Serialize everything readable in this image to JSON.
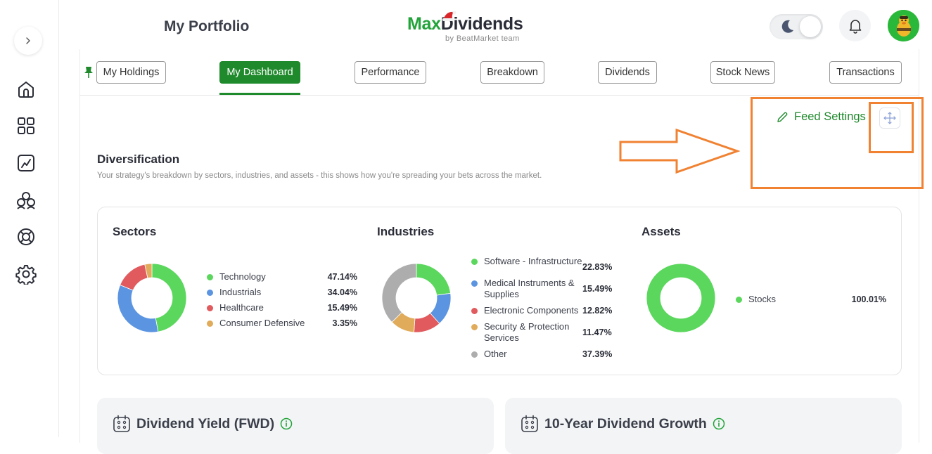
{
  "header": {
    "page_title": "My Portfolio",
    "logo_max": "Max",
    "logo_dividends": "Dividends",
    "logo_sub": "by BeatMarket team"
  },
  "rail": {
    "items": [
      "home-icon",
      "apps-grid-icon",
      "chart-icon",
      "community-icon",
      "lifebuoy-icon",
      "gear-icon"
    ]
  },
  "tabs": [
    {
      "label": "My Holdings"
    },
    {
      "label": "My Dashboard",
      "active": true
    },
    {
      "label": "Performance"
    },
    {
      "label": "Breakdown"
    },
    {
      "label": "Dividends"
    },
    {
      "label": "Stock News"
    },
    {
      "label": "Transactions"
    }
  ],
  "toolbar": {
    "feed_settings": "Feed Settings"
  },
  "diversification": {
    "title": "Diversification",
    "subtitle": "Your strategy's breakdown by sectors, industries, and assets - this shows how you're spreading your bets across the market."
  },
  "colors": {
    "accent": "#1f8a2c",
    "green": "#5ad75c",
    "blue": "#5b94e0",
    "red": "#e05a5e",
    "orange": "#e0ab5a",
    "gray": "#adadad",
    "annotation": "#f08232"
  },
  "chart_data": [
    {
      "type": "pie",
      "title": "Sectors",
      "categories": [
        "Technology",
        "Industrials",
        "Healthcare",
        "Consumer Defensive"
      ],
      "values": [
        47.14,
        34.04,
        15.49,
        3.35
      ],
      "labels": [
        "47.14%",
        "34.04%",
        "15.49%",
        "3.35%"
      ],
      "colors": [
        "#5ad75c",
        "#5b94e0",
        "#e05a5e",
        "#e0ab5a"
      ]
    },
    {
      "type": "pie",
      "title": "Industries",
      "categories": [
        "Software - Infrastructure",
        "Medical Instruments & Supplies",
        "Electronic Components",
        "Security & Protection Services",
        "Other"
      ],
      "values": [
        22.83,
        15.49,
        12.82,
        11.47,
        37.39
      ],
      "labels": [
        "22.83%",
        "15.49%",
        "12.82%",
        "11.47%",
        "37.39%"
      ],
      "colors": [
        "#5ad75c",
        "#5b94e0",
        "#e05a5e",
        "#e0ab5a",
        "#adadad"
      ]
    },
    {
      "type": "pie",
      "title": "Assets",
      "categories": [
        "Stocks"
      ],
      "values": [
        100.01
      ],
      "labels": [
        "100.01%"
      ],
      "colors": [
        "#5ad75c"
      ]
    }
  ],
  "bottom_cards": [
    {
      "title": "Dividend Yield (FWD)"
    },
    {
      "title": "10-Year Dividend Growth"
    }
  ]
}
